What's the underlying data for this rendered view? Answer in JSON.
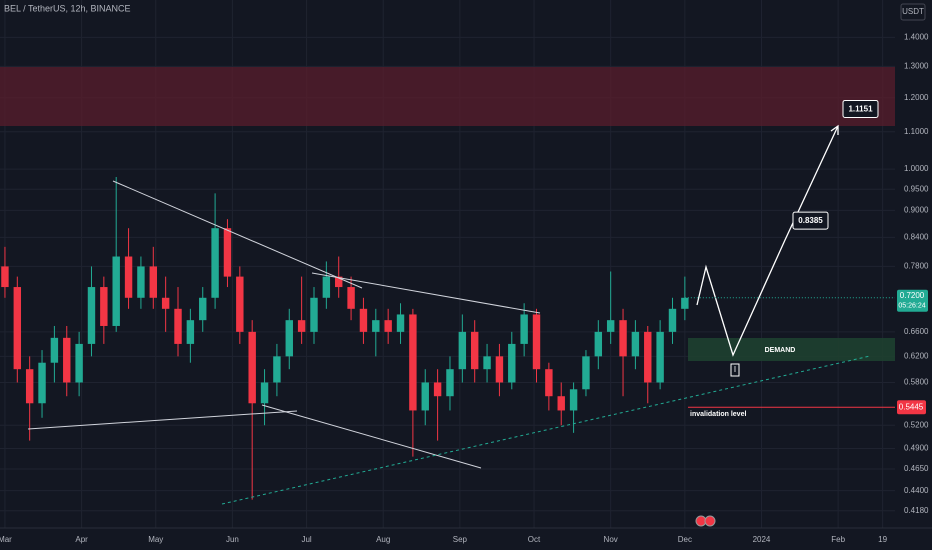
{
  "header": {
    "symbol": "BEL / TetherUS, 12h, BINANCE",
    "currency": "USDT"
  },
  "chart_data": {
    "type": "candlestick",
    "log_scale": true,
    "grid": true,
    "up_color": "#22ab94",
    "down_color": "#f23645",
    "xlim": [
      -2,
      360
    ],
    "ylim": [
      0.4,
      1.54
    ],
    "xticks": [
      {
        "value": 0,
        "label": "Mar"
      },
      {
        "value": 31,
        "label": "Apr"
      },
      {
        "value": 61,
        "label": "May"
      },
      {
        "value": 92,
        "label": "Jun"
      },
      {
        "value": 122,
        "label": "Jul"
      },
      {
        "value": 153,
        "label": "Aug"
      },
      {
        "value": 184,
        "label": "Sep"
      },
      {
        "value": 214,
        "label": "Oct"
      },
      {
        "value": 245,
        "label": "Nov"
      },
      {
        "value": 275,
        "label": "Dec"
      },
      {
        "value": 306,
        "label": "2024"
      },
      {
        "value": 337,
        "label": "Feb"
      },
      {
        "value": 355,
        "label": "19"
      }
    ],
    "yticks": [
      {
        "value": 1.4,
        "label": "1.4000"
      },
      {
        "value": 1.3,
        "label": "1.3000"
      },
      {
        "value": 1.2,
        "label": "1.2000"
      },
      {
        "value": 1.1,
        "label": "1.1000"
      },
      {
        "value": 1.0,
        "label": "1.0000"
      },
      {
        "value": 0.95,
        "label": "0.9500"
      },
      {
        "value": 0.9,
        "label": "0.9000"
      },
      {
        "value": 0.84,
        "label": "0.8400"
      },
      {
        "value": 0.78,
        "label": "0.7800"
      },
      {
        "value": 0.66,
        "label": "0.6600"
      },
      {
        "value": 0.62,
        "label": "0.6200"
      },
      {
        "value": 0.58,
        "label": "0.5800"
      },
      {
        "value": 0.52,
        "label": "0.5200"
      },
      {
        "value": 0.49,
        "label": "0.4900"
      },
      {
        "value": 0.465,
        "label": "0.4650"
      },
      {
        "value": 0.44,
        "label": "0.4400"
      },
      {
        "value": 0.418,
        "label": "0.4180"
      }
    ],
    "x": [
      0,
      5,
      10,
      15,
      20,
      25,
      30,
      35,
      40,
      45,
      50,
      55,
      60,
      65,
      70,
      75,
      80,
      85,
      90,
      95,
      100,
      105,
      110,
      115,
      120,
      125,
      130,
      135,
      140,
      145,
      150,
      155,
      160,
      165,
      170,
      175,
      180,
      185,
      190,
      195,
      200,
      205,
      210,
      215,
      220,
      225,
      230,
      235,
      240,
      245,
      250,
      255,
      260,
      265,
      270,
      275
    ],
    "open": [
      0.78,
      0.74,
      0.6,
      0.55,
      0.61,
      0.65,
      0.58,
      0.64,
      0.74,
      0.67,
      0.8,
      0.72,
      0.78,
      0.72,
      0.7,
      0.64,
      0.68,
      0.72,
      0.86,
      0.76,
      0.66,
      0.55,
      0.58,
      0.62,
      0.68,
      0.66,
      0.72,
      0.76,
      0.74,
      0.7,
      0.66,
      0.68,
      0.66,
      0.69,
      0.54,
      0.58,
      0.56,
      0.6,
      0.66,
      0.6,
      0.62,
      0.58,
      0.64,
      0.69,
      0.6,
      0.56,
      0.54,
      0.57,
      0.62,
      0.66,
      0.68,
      0.62,
      0.66,
      0.58,
      0.66,
      0.7
    ],
    "high": [
      0.82,
      0.76,
      0.62,
      0.63,
      0.67,
      0.67,
      0.66,
      0.78,
      0.76,
      0.98,
      0.86,
      0.8,
      0.82,
      0.76,
      0.74,
      0.7,
      0.74,
      0.94,
      0.88,
      0.78,
      0.68,
      0.6,
      0.64,
      0.7,
      0.76,
      0.74,
      0.79,
      0.8,
      0.76,
      0.72,
      0.7,
      0.7,
      0.71,
      0.7,
      0.6,
      0.6,
      0.62,
      0.69,
      0.68,
      0.64,
      0.64,
      0.66,
      0.71,
      0.7,
      0.61,
      0.58,
      0.58,
      0.63,
      0.68,
      0.77,
      0.7,
      0.68,
      0.67,
      0.68,
      0.72,
      0.76
    ],
    "low": [
      0.72,
      0.58,
      0.5,
      0.53,
      0.58,
      0.56,
      0.56,
      0.62,
      0.64,
      0.66,
      0.7,
      0.7,
      0.7,
      0.66,
      0.62,
      0.61,
      0.66,
      0.7,
      0.74,
      0.64,
      0.43,
      0.52,
      0.56,
      0.6,
      0.64,
      0.64,
      0.7,
      0.72,
      0.68,
      0.64,
      0.62,
      0.64,
      0.64,
      0.48,
      0.52,
      0.5,
      0.54,
      0.58,
      0.58,
      0.58,
      0.56,
      0.57,
      0.62,
      0.58,
      0.54,
      0.52,
      0.51,
      0.56,
      0.6,
      0.64,
      0.56,
      0.6,
      0.55,
      0.57,
      0.64,
      0.68
    ],
    "close": [
      0.74,
      0.6,
      0.55,
      0.61,
      0.65,
      0.58,
      0.64,
      0.74,
      0.67,
      0.8,
      0.72,
      0.78,
      0.72,
      0.7,
      0.64,
      0.68,
      0.72,
      0.86,
      0.76,
      0.66,
      0.55,
      0.58,
      0.62,
      0.68,
      0.66,
      0.72,
      0.76,
      0.74,
      0.7,
      0.66,
      0.68,
      0.66,
      0.69,
      0.54,
      0.58,
      0.56,
      0.6,
      0.66,
      0.6,
      0.62,
      0.58,
      0.64,
      0.69,
      0.6,
      0.56,
      0.54,
      0.57,
      0.62,
      0.66,
      0.68,
      0.62,
      0.66,
      0.58,
      0.66,
      0.7,
      0.72
    ],
    "last_price": {
      "value": 0.72,
      "label": "0.7200",
      "countdown": "05:26:24"
    },
    "invalidation": {
      "value": 0.5445,
      "text": "invalidation level"
    },
    "demand_text": "DEMAND",
    "targets": [
      1.1151,
      0.8385
    ],
    "marker": "I"
  }
}
